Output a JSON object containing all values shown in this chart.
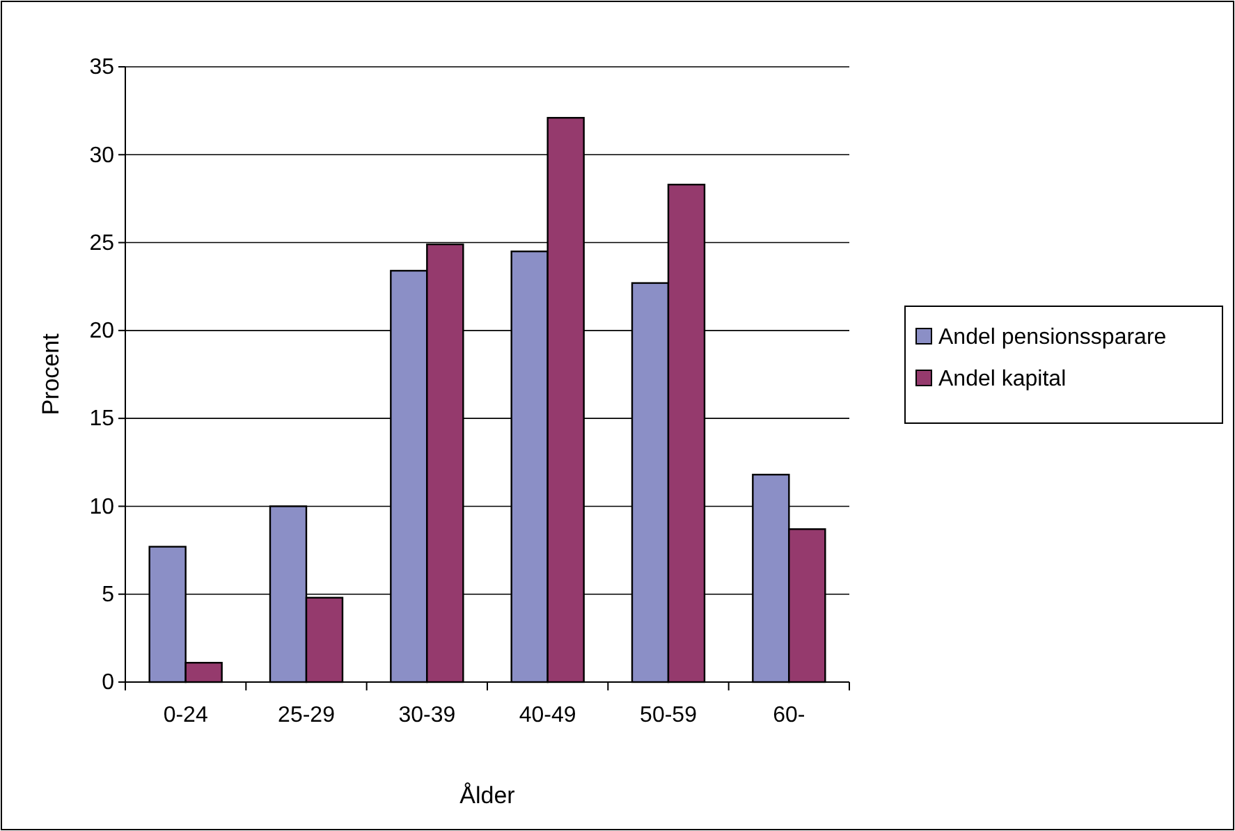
{
  "chart_data": {
    "type": "bar",
    "xlabel": "Ålder",
    "ylabel": "Procent",
    "categories": [
      "0-24",
      "25-29",
      "30-39",
      "40-49",
      "50-59",
      "60-"
    ],
    "series": [
      {
        "name": "Andel pensionssparare",
        "color": "#8b8fc6",
        "values": [
          7.7,
          10.0,
          23.4,
          24.5,
          22.7,
          11.8
        ]
      },
      {
        "name": "Andel kapital",
        "color": "#953a6d",
        "values": [
          1.1,
          4.8,
          24.9,
          32.1,
          28.3,
          8.7
        ]
      }
    ],
    "ylim": [
      0,
      35
    ],
    "yticks": [
      0,
      5,
      10,
      15,
      20,
      25,
      30,
      35
    ],
    "grid": "y",
    "legend": "right"
  }
}
